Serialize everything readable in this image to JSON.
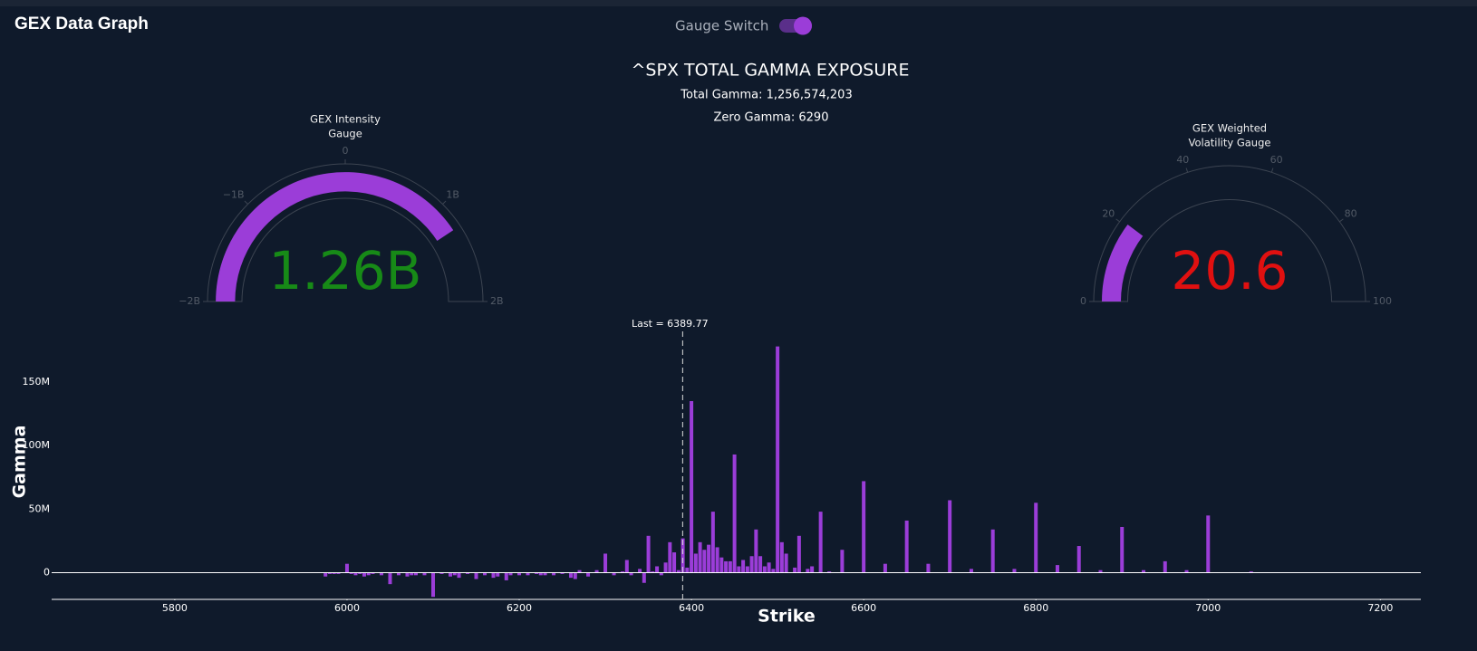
{
  "header": {
    "title": "GEX Data Graph",
    "switch_label": "Gauge Switch"
  },
  "summary": {
    "title": "^SPX TOTAL GAMMA EXPOSURE",
    "total_gamma": "Total Gamma: 1,256,574,203",
    "zero_gamma": "Zero Gamma: 6290"
  },
  "chart_data": [
    {
      "type": "gauge",
      "title": [
        "GEX Intensity",
        "Gauge"
      ],
      "value": 1256574203,
      "value_label": "1.26B",
      "range": [
        -2000000000,
        2000000000
      ],
      "ticks": [
        {
          "value": -2000000000,
          "label": "−2B"
        },
        {
          "value": -1000000000,
          "label": "−1B"
        },
        0,
        {
          "value": 1000000000,
          "label": "1B"
        },
        {
          "value": 2000000000,
          "label": "2B"
        }
      ],
      "color": "#9b3dd8",
      "number_color": "#178a17"
    },
    {
      "type": "gauge",
      "title": [
        "GEX Weighted",
        "Volatility Gauge"
      ],
      "value": 20.6,
      "range": [
        0,
        100
      ],
      "ticks": [
        0,
        20,
        40,
        60,
        80,
        100
      ],
      "color": "#9b3dd8",
      "number_color": "#e01010"
    },
    {
      "type": "bar",
      "xlabel": "Strike",
      "ylabel": "Gamma",
      "color": "#9b3dd8",
      "zeroline": true,
      "xlim": [
        5657,
        7247
      ],
      "xticks": [
        5800,
        6000,
        6200,
        6400,
        6600,
        6800,
        7000,
        7200
      ],
      "ylim": [
        -21000000,
        187000000
      ],
      "yticks": [
        0,
        {
          "value": 50000000,
          "label": "50M"
        },
        {
          "value": 100000000,
          "label": "100M"
        },
        {
          "value": 150000000,
          "label": "150M"
        }
      ],
      "annotation": {
        "label": "Last = 6389.77",
        "x": 6389.77
      },
      "x": [
        5975,
        5980,
        5985,
        5990,
        6000,
        6005,
        6010,
        6015,
        6020,
        6025,
        6030,
        6040,
        6050,
        6060,
        6070,
        6075,
        6080,
        6090,
        6100,
        6110,
        6120,
        6125,
        6130,
        6140,
        6150,
        6160,
        6170,
        6175,
        6185,
        6190,
        6200,
        6210,
        6220,
        6225,
        6230,
        6240,
        6250,
        6260,
        6265,
        6270,
        6280,
        6290,
        6300,
        6310,
        6320,
        6325,
        6330,
        6340,
        6345,
        6350,
        6355,
        6360,
        6365,
        6370,
        6375,
        6380,
        6385,
        6390,
        6395,
        6400,
        6405,
        6410,
        6415,
        6420,
        6425,
        6430,
        6435,
        6440,
        6445,
        6450,
        6455,
        6460,
        6465,
        6470,
        6475,
        6480,
        6485,
        6490,
        6495,
        6500,
        6505,
        6510,
        6520,
        6525,
        6535,
        6540,
        6550,
        6560,
        6575,
        6600,
        6625,
        6650,
        6675,
        6700,
        6725,
        6750,
        6775,
        6800,
        6825,
        6850,
        6875,
        6900,
        6925,
        6950,
        6975,
        7000,
        7050
      ],
      "values": [
        -3000000,
        -1000000,
        -1000000,
        -1000000,
        7000000,
        -1000000,
        -2000000,
        -1000000,
        -3000000,
        -2000000,
        -1000000,
        -2000000,
        -9000000,
        -2000000,
        -3000000,
        -2000000,
        -2000000,
        -2000000,
        -19000000,
        -1000000,
        -3000000,
        -2000000,
        -4000000,
        -1000000,
        -5000000,
        -2000000,
        -4000000,
        -3000000,
        -6000000,
        -2000000,
        -2000000,
        -2000000,
        -1000000,
        -2000000,
        -2000000,
        -2000000,
        -1000000,
        -4000000,
        -5000000,
        2000000,
        -3000000,
        2000000,
        15000000,
        -2000000,
        1000000,
        10000000,
        -2000000,
        3000000,
        -8000000,
        29000000,
        1000000,
        5000000,
        -2000000,
        8000000,
        24000000,
        16000000,
        2000000,
        27000000,
        4000000,
        135000000,
        15000000,
        24000000,
        18000000,
        22000000,
        48000000,
        20000000,
        12000000,
        9000000,
        9000000,
        93000000,
        5000000,
        10000000,
        5000000,
        13000000,
        34000000,
        13000000,
        5000000,
        8000000,
        3000000,
        178000000,
        24000000,
        15000000,
        4000000,
        29000000,
        3000000,
        5000000,
        48000000,
        1000000,
        18000000,
        72000000,
        7000000,
        41000000,
        7000000,
        57000000,
        3000000,
        34000000,
        3000000,
        55000000,
        6000000,
        21000000,
        2000000,
        36000000,
        2000000,
        9000000,
        2000000,
        45000000,
        1000000
      ]
    }
  ]
}
